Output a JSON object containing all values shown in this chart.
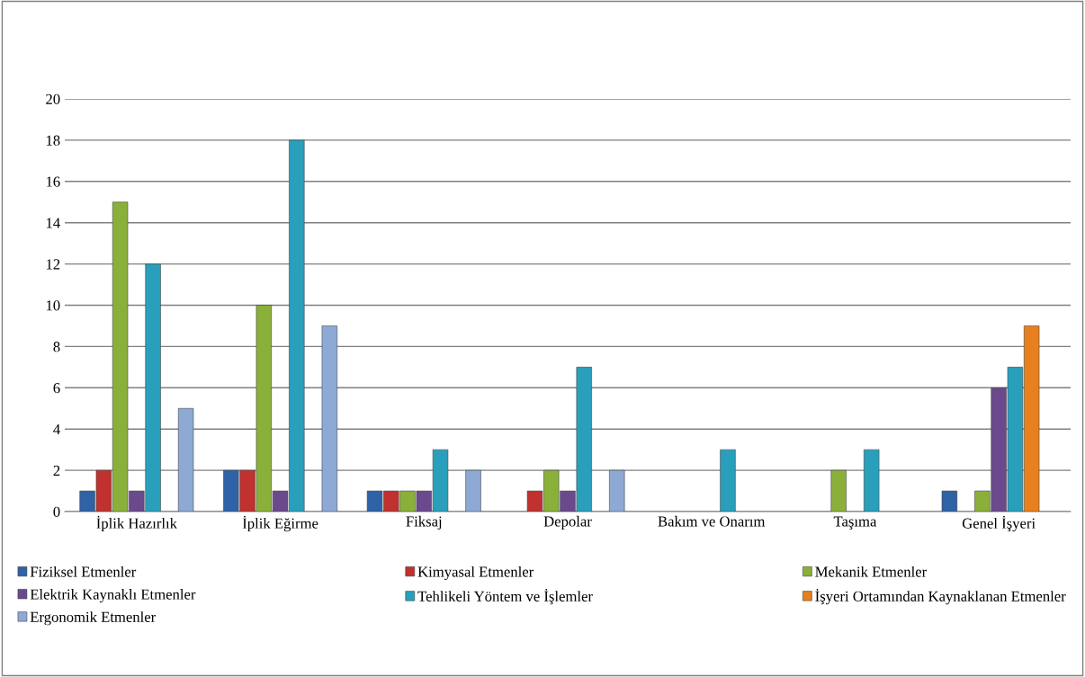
{
  "chart_data": {
    "type": "bar",
    "categories": [
      "İplik Hazırlık",
      "İplik Eğirme",
      "Fiksaj",
      "Depolar",
      "Bakım ve Onarım",
      "Taşıma",
      "Genel İşyeri"
    ],
    "series": [
      {
        "name": "Fiziksel Etmenler",
        "color": "#2f62a6",
        "values": [
          1,
          2,
          1,
          null,
          null,
          null,
          1
        ]
      },
      {
        "name": "Kimyasal Etmenler",
        "color": "#c0312f",
        "values": [
          2,
          2,
          1,
          1,
          null,
          null,
          null
        ]
      },
      {
        "name": "Mekanik Etmenler",
        "color": "#8bb03a",
        "values": [
          15,
          10,
          1,
          2,
          null,
          2,
          1
        ]
      },
      {
        "name": "Elektrik Kaynaklı Etmenler",
        "color": "#6a4a8c",
        "values": [
          1,
          1,
          1,
          1,
          null,
          null,
          6
        ]
      },
      {
        "name": "Tehlikeli Yöntem ve İşlemler",
        "color": "#2a9fbc",
        "values": [
          12,
          18,
          3,
          7,
          3,
          3,
          7
        ]
      },
      {
        "name": "İşyeri Ortamından Kaynaklanan Etmenler",
        "color": "#e8801f",
        "values": [
          null,
          null,
          null,
          null,
          null,
          null,
          9
        ]
      },
      {
        "name": "Ergonomik Etmenler",
        "color": "#8ea9d4",
        "values": [
          5,
          9,
          2,
          2,
          null,
          null,
          null
        ]
      }
    ],
    "ylim": [
      0,
      20
    ],
    "yticks": [
      0,
      2,
      4,
      6,
      8,
      10,
      12,
      14,
      16,
      18,
      20
    ],
    "grid": "y",
    "legend": "bottom"
  }
}
